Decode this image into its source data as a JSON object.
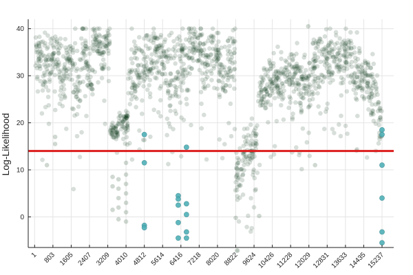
{
  "chart_data": {
    "type": "scatter",
    "title": "",
    "xlabel": "",
    "ylabel": "Log-Likelihood",
    "xlim": [
      -280,
      15750
    ],
    "ylim": [
      -6.5,
      42
    ],
    "x_ticks": [
      1,
      803,
      1605,
      2407,
      3209,
      4010,
      4812,
      5614,
      6416,
      7218,
      8020,
      8822,
      9624,
      10426,
      11228,
      12029,
      12831,
      13633,
      14435,
      15237
    ],
    "y_ticks": [
      0,
      10,
      20,
      30,
      40
    ],
    "grid": true,
    "legend": "none",
    "threshold": {
      "y": 14,
      "color": "#dd1c1c"
    },
    "colors": {
      "inlier": "#0d3a17",
      "outlier": "#4fb0b7",
      "grid": "#e4e4e4",
      "axis": "#222222"
    },
    "segments": [
      {
        "x0": 1,
        "x1": 300,
        "center": 34.5,
        "spread": 1.8
      },
      {
        "x0": 300,
        "x1": 650,
        "center": 32.0,
        "spread": 3.5
      },
      {
        "x0": 650,
        "x1": 1100,
        "center": 33.5,
        "spread": 2.5
      },
      {
        "x0": 1100,
        "x1": 1350,
        "center": 30.5,
        "spread": 3.5
      },
      {
        "x0": 1350,
        "x1": 1700,
        "center": 33.0,
        "spread": 2.5
      },
      {
        "x0": 1700,
        "x1": 2000,
        "center": 29.0,
        "spread": 4.0
      },
      {
        "x0": 2000,
        "x1": 2300,
        "center": 35.0,
        "spread": 3.0
      },
      {
        "x0": 2300,
        "x1": 2550,
        "center": 30.5,
        "spread": 3.0
      },
      {
        "x0": 2550,
        "x1": 2900,
        "center": 37.5,
        "spread": 1.5
      },
      {
        "x0": 2900,
        "x1": 3100,
        "center": 34.5,
        "spread": 2.5
      },
      {
        "x0": 3100,
        "x1": 3300,
        "center": 37.0,
        "spread": 2.0
      },
      {
        "x0": 3300,
        "x1": 3650,
        "center": 18.0,
        "spread": 0.8
      },
      {
        "x0": 3650,
        "x1": 4100,
        "center": 20.0,
        "spread": 1.5
      },
      {
        "x0": 4100,
        "x1": 4500,
        "center": 30.0,
        "spread": 4.0
      },
      {
        "x0": 4500,
        "x1": 4850,
        "center": 31.5,
        "spread": 3.0
      },
      {
        "x0": 4850,
        "x1": 5150,
        "center": 32.5,
        "spread": 3.0
      },
      {
        "x0": 5150,
        "x1": 5450,
        "center": 35.0,
        "spread": 3.0
      },
      {
        "x0": 5450,
        "x1": 5850,
        "center": 33.5,
        "spread": 3.0
      },
      {
        "x0": 5850,
        "x1": 6300,
        "center": 30.0,
        "spread": 4.0
      },
      {
        "x0": 6300,
        "x1": 6750,
        "center": 32.5,
        "spread": 3.5
      },
      {
        "x0": 6750,
        "x1": 7300,
        "center": 36.0,
        "spread": 2.8
      },
      {
        "x0": 7300,
        "x1": 7700,
        "center": 33.0,
        "spread": 3.5
      },
      {
        "x0": 7700,
        "x1": 8100,
        "center": 35.0,
        "spread": 3.0
      },
      {
        "x0": 8100,
        "x1": 8400,
        "center": 31.0,
        "spread": 3.5
      },
      {
        "x0": 8400,
        "x1": 8800,
        "center": 33.5,
        "spread": 3.0
      },
      {
        "x0": 8800,
        "x1": 9150,
        "center": 10.0,
        "spread": 3.0
      },
      {
        "x0": 9150,
        "x1": 9550,
        "center": 14.5,
        "spread": 3.0
      },
      {
        "x0": 9550,
        "x1": 9800,
        "center": 15.0,
        "spread": 3.0
      },
      {
        "x0": 9800,
        "x1": 10400,
        "center": 28.5,
        "spread": 3.0
      },
      {
        "x0": 10400,
        "x1": 11000,
        "center": 29.0,
        "spread": 3.0
      },
      {
        "x0": 11000,
        "x1": 11600,
        "center": 29.5,
        "spread": 3.0
      },
      {
        "x0": 11600,
        "x1": 12200,
        "center": 28.0,
        "spread": 3.0
      },
      {
        "x0": 12200,
        "x1": 12800,
        "center": 33.0,
        "spread": 3.0
      },
      {
        "x0": 12800,
        "x1": 13400,
        "center": 33.5,
        "spread": 3.0
      },
      {
        "x0": 13400,
        "x1": 13900,
        "center": 34.0,
        "spread": 3.0
      },
      {
        "x0": 13900,
        "x1": 14300,
        "center": 31.0,
        "spread": 3.0
      },
      {
        "x0": 14300,
        "x1": 14700,
        "center": 29.0,
        "spread": 3.0
      },
      {
        "x0": 14700,
        "x1": 15050,
        "center": 27.5,
        "spread": 3.5
      },
      {
        "x0": 15050,
        "x1": 15237,
        "center": 21.0,
        "spread": 2.0
      }
    ],
    "inlier_outliers": [
      {
        "x": 4010,
        "y": 11.5
      },
      {
        "x": 4010,
        "y": 9
      },
      {
        "x": 4010,
        "y": 7
      },
      {
        "x": 4010,
        "y": 5
      },
      {
        "x": 4010,
        "y": 3
      },
      {
        "x": 4010,
        "y": 1
      },
      {
        "x": 4010,
        "y": -1
      },
      {
        "x": 3680,
        "y": 8
      },
      {
        "x": 3680,
        "y": 6
      },
      {
        "x": 3680,
        "y": 4
      },
      {
        "x": 3680,
        "y": 2
      },
      {
        "x": 3680,
        "y": -0.5
      },
      {
        "x": 3420,
        "y": 8.5
      },
      {
        "x": 3420,
        "y": 6.5
      },
      {
        "x": 3420,
        "y": 1.5
      },
      {
        "x": 540,
        "y": 11
      },
      {
        "x": 900,
        "y": 15.5
      },
      {
        "x": 900,
        "y": 17
      },
      {
        "x": 8820,
        "y": -0.2
      },
      {
        "x": 9850,
        "y": 0.2
      },
      {
        "x": 12000,
        "y": 40.5
      },
      {
        "x": 12300,
        "y": 11
      }
    ],
    "outliers": [
      {
        "x": 4812,
        "y": 17.5
      },
      {
        "x": 4812,
        "y": 11.5
      },
      {
        "x": 4812,
        "y": -1.8
      },
      {
        "x": 4812,
        "y": -2.3
      },
      {
        "x": 6300,
        "y": 4.5
      },
      {
        "x": 6300,
        "y": 3.8
      },
      {
        "x": 6300,
        "y": 2.5
      },
      {
        "x": 6300,
        "y": -1.2
      },
      {
        "x": 6300,
        "y": -4.5
      },
      {
        "x": 6660,
        "y": 14.8
      },
      {
        "x": 6660,
        "y": 2.8
      },
      {
        "x": 6660,
        "y": 0.5
      },
      {
        "x": 6660,
        "y": -3.2
      },
      {
        "x": 6660,
        "y": -4.5
      },
      {
        "x": 15237,
        "y": 18.5
      },
      {
        "x": 15237,
        "y": 17.5
      },
      {
        "x": 15237,
        "y": 11
      },
      {
        "x": 15237,
        "y": 4
      },
      {
        "x": 15237,
        "y": -3.2
      },
      {
        "x": 15237,
        "y": -5.5
      }
    ]
  }
}
